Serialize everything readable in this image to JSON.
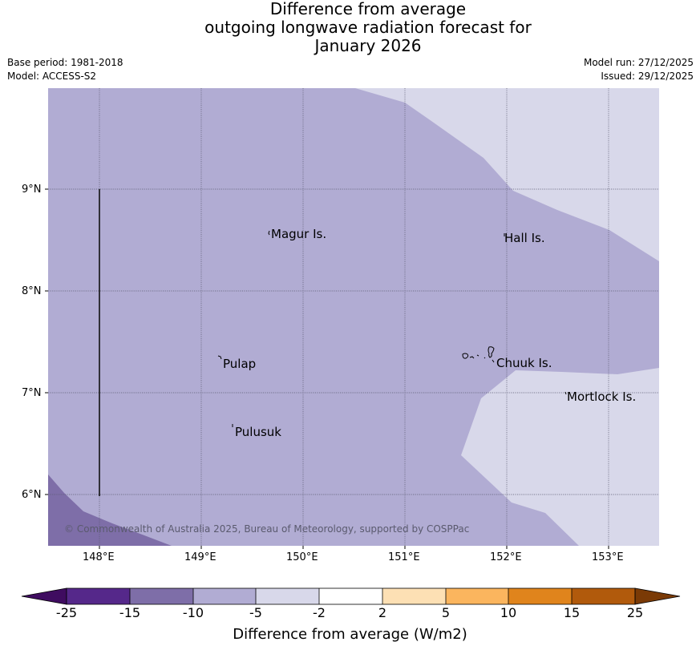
{
  "title": {
    "line1": "Difference from average",
    "line2": "outgoing longwave radiation forecast for",
    "line3": "January 2026"
  },
  "meta": {
    "base_period": "Base period: 1981-2018",
    "model": "Model: ACCESS-S2",
    "model_run": "Model run: 27/12/2025",
    "issued": "Issued: 29/12/2025"
  },
  "map": {
    "lon_ticks": [
      "148°E",
      "149°E",
      "150°E",
      "151°E",
      "152°E",
      "153°E"
    ],
    "lat_ticks": [
      "9°N",
      "8°N",
      "7°N",
      "6°N"
    ],
    "places": {
      "magur": "Magur Is.",
      "hall": "Hall Is.",
      "pulap": "Pulap",
      "chuuk": "Chuuk Is.",
      "mortlock": "Mortlock Is.",
      "pulusuk": "Pulusuk"
    },
    "copyright": "© Commonwealth of Australia 2025, Bureau of Meteorology, supported by COSPPac",
    "colors": {
      "band_minus15_minus10": "#7e6ea8",
      "band_minus10_minus5": "#b1acd3",
      "band_minus5_minus2": "#d8d8ea"
    }
  },
  "colorbar": {
    "labels": [
      "-25",
      "-15",
      "-10",
      "-5",
      "-2",
      "2",
      "5",
      "10",
      "15",
      "25"
    ],
    "colors": [
      "#3f0c60",
      "#55288a",
      "#7e6ea8",
      "#b1acd3",
      "#d8d8ea",
      "#ffffff",
      "#fde0b4",
      "#fbb55e",
      "#e0841c",
      "#b15a0c",
      "#7a3a06"
    ],
    "title": "Difference from average (W/m2)"
  }
}
